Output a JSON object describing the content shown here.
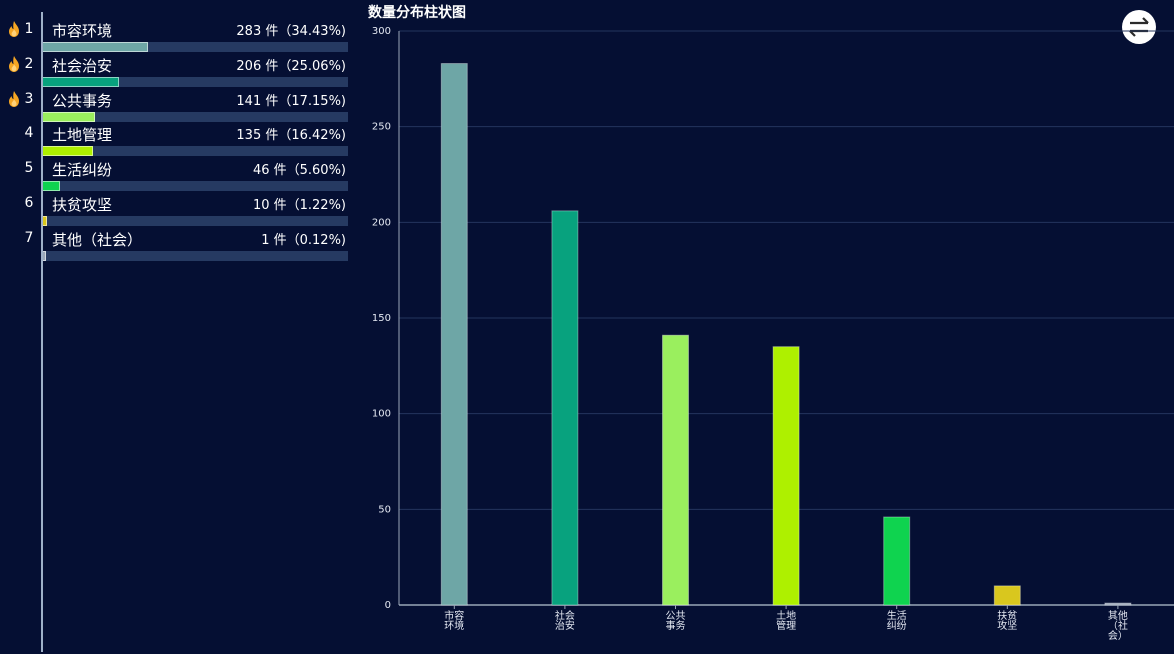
{
  "chart_data": {
    "type": "bar",
    "title": "数量分布柱状图",
    "categories": [
      "市容环境",
      "社会治安",
      "公共事务",
      "土地管理",
      "生活纠纷",
      "扶贫攻坚",
      "其他（社会）"
    ],
    "x_tick_labels": [
      [
        "市容",
        "环境"
      ],
      [
        "社会",
        "治安"
      ],
      [
        "公共",
        "事务"
      ],
      [
        "土地",
        "管理"
      ],
      [
        "生活",
        "纠纷"
      ],
      [
        "扶贫",
        "攻坚"
      ],
      [
        "其他",
        "（社",
        "会）"
      ]
    ],
    "values": [
      283,
      206,
      141,
      135,
      46,
      10,
      1
    ],
    "colors": [
      "#6ea6a6",
      "#08a27e",
      "#9aef5e",
      "#aef000",
      "#0fd34f",
      "#d9c71e",
      "#9aa7b8"
    ],
    "ylim": [
      0,
      300
    ],
    "yticks": [
      0,
      50,
      100,
      150,
      200,
      250,
      300
    ],
    "grid": true
  },
  "ranking": {
    "items": [
      {
        "rank": "1",
        "name": "市容环境",
        "value": "283 件（34.43%)",
        "percent": 34.43,
        "hot": true
      },
      {
        "rank": "2",
        "name": "社会治安",
        "value": "206 件（25.06%)",
        "percent": 25.06,
        "hot": true
      },
      {
        "rank": "3",
        "name": "公共事务",
        "value": "141 件（17.15%)",
        "percent": 17.15,
        "hot": true
      },
      {
        "rank": "4",
        "name": "土地管理",
        "value": "135 件（16.42%)",
        "percent": 16.42,
        "hot": false
      },
      {
        "rank": "5",
        "name": "生活纠纷",
        "value": "46 件（5.60%)",
        "percent": 5.6,
        "hot": false
      },
      {
        "rank": "6",
        "name": "扶贫攻坚",
        "value": "10 件（1.22%)",
        "percent": 1.22,
        "hot": false
      },
      {
        "rank": "7",
        "name": "其他（社会）",
        "value": "1 件（0.12%)",
        "percent": 0.12,
        "hot": false
      }
    ]
  },
  "toolbar": {
    "toggle_icon": "swap-arrows-icon"
  }
}
